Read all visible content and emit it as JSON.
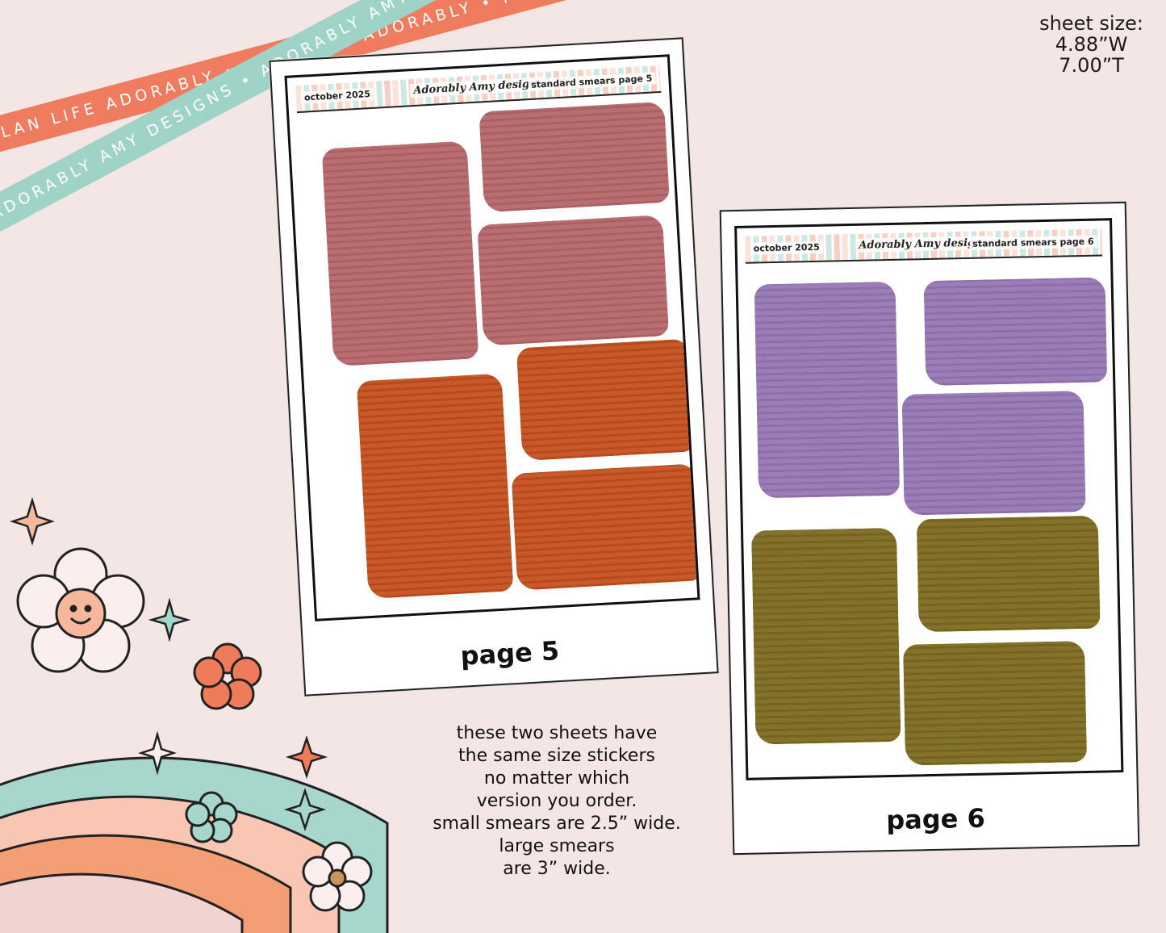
{
  "ribbons": {
    "ribbon_1_text": "PLAN LIFE ADORABLY • PLAN LIFE ADORABLY • PLAN LIFE ADORABLY •",
    "ribbon_2_text": "ADORABLY AMY DESIGNS • ADORABLY AMY DESIGNS • ADORABLY AMY DESIGNS •"
  },
  "sheet_size": {
    "label": "sheet size:",
    "width": "4.88”W",
    "height": "7.00”T"
  },
  "sheets": [
    {
      "month": "october 2025",
      "logo": "Adorably Amy designs",
      "title": "standard smears page 5",
      "label": "page 5",
      "colors": {
        "top": "#b5676a",
        "bottom": "#c4501f"
      }
    },
    {
      "month": "october 2025",
      "logo": "Adorably Amy designs",
      "title": "standard smears page 6",
      "label": "page 6",
      "colors": {
        "top": "#9677b4",
        "bottom": "#7d6b21"
      }
    }
  ],
  "info": {
    "lines": [
      "these two sheets have",
      "the same size stickers",
      "no matter which",
      "version you order.",
      "small smears are 2.5” wide.",
      "large smears",
      "are 3” wide."
    ]
  },
  "rainbow_colors": [
    "#a6d6cc",
    "#f9c6b3",
    "#f49e76",
    "#f7c8be",
    "#f1d3d2"
  ]
}
